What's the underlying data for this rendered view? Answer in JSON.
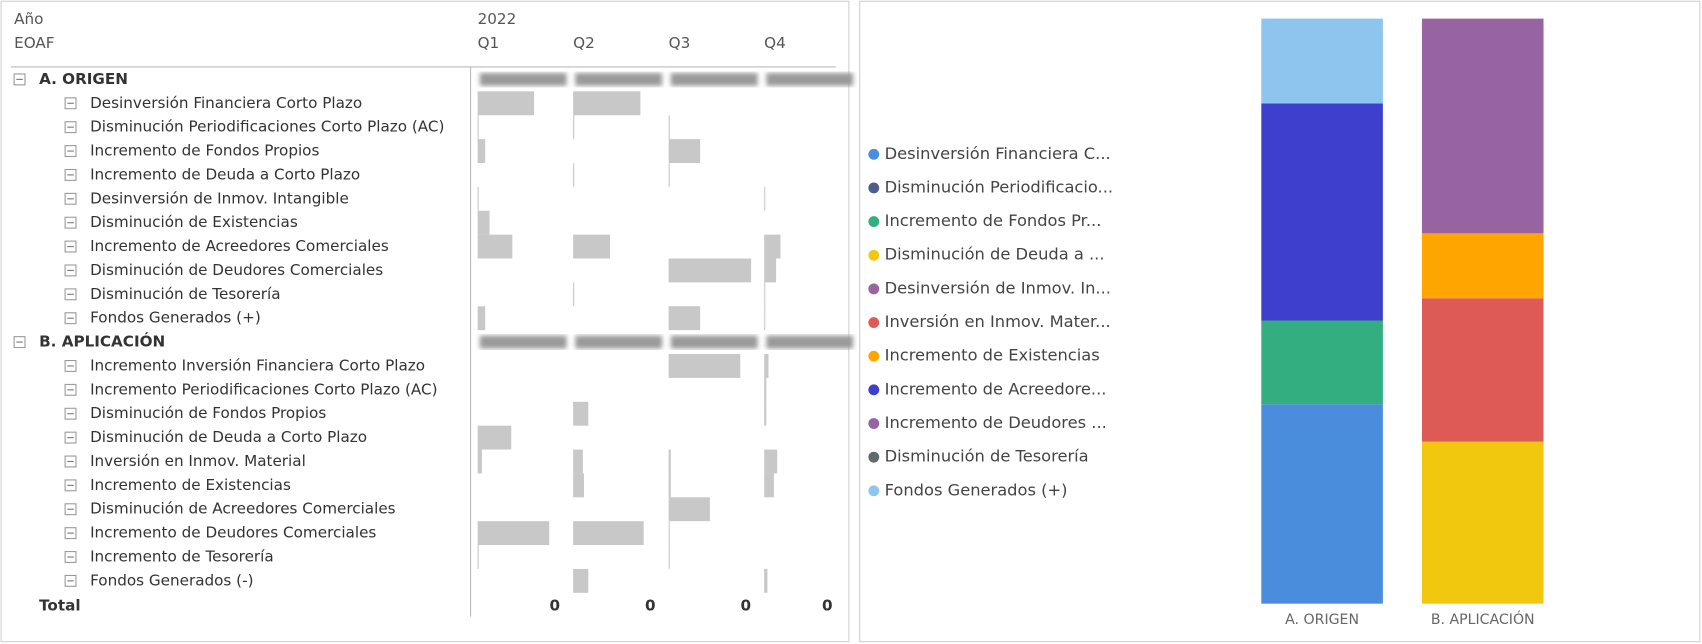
{
  "matrix": {
    "headers": {
      "row_levels": [
        "Año",
        "EOAF"
      ],
      "year": "2022",
      "columns": [
        "Q1",
        "Q2",
        "Q3",
        "Q4"
      ]
    },
    "groups": [
      {
        "label": "A. ORIGEN",
        "rows": [
          {
            "label": "Desinversión Financiera Corto Plazo",
            "bars": [
              52,
              62,
              null,
              null
            ]
          },
          {
            "label": "Disminución Periodificaciones Corto Plazo (AC)",
            "bars": [
              1,
              1,
              1,
              null
            ]
          },
          {
            "label": "Incremento de Fondos Propios",
            "bars": [
              7,
              null,
              29,
              null
            ]
          },
          {
            "label": "Incremento de Deuda a Corto Plazo",
            "bars": [
              null,
              1,
              1,
              null
            ]
          },
          {
            "label": "Desinversión de Inmov. Intangible",
            "bars": [
              1,
              null,
              null,
              1
            ]
          },
          {
            "label": "Disminución de Existencias",
            "bars": [
              11,
              null,
              null,
              null
            ]
          },
          {
            "label": "Incremento de Acreedores Comerciales",
            "bars": [
              32,
              34,
              null,
              15
            ]
          },
          {
            "label": "Disminución de Deudores Comerciales",
            "bars": [
              null,
              null,
              76,
              11
            ]
          },
          {
            "label": "Disminución de Tesorería",
            "bars": [
              null,
              1,
              null,
              1
            ]
          },
          {
            "label": "Fondos Generados (+)",
            "bars": [
              7,
              null,
              29,
              1
            ]
          }
        ]
      },
      {
        "label": "B. APLICACIÓN",
        "rows": [
          {
            "label": "Incremento Inversión Financiera Corto Plazo",
            "bars": [
              null,
              null,
              66,
              4
            ]
          },
          {
            "label": "Incremento Periodificaciones Corto Plazo (AC)",
            "bars": [
              null,
              null,
              null,
              2
            ]
          },
          {
            "label": "Disminución de Fondos Propios",
            "bars": [
              null,
              14,
              null,
              2
            ]
          },
          {
            "label": "Disminución de Deuda a Corto Plazo",
            "bars": [
              31,
              null,
              null,
              null
            ]
          },
          {
            "label": "Inversión en Inmov. Material",
            "bars": [
              4,
              9,
              2,
              12
            ]
          },
          {
            "label": "Incremento de Existencias",
            "bars": [
              null,
              10,
              2,
              9
            ]
          },
          {
            "label": "Disminución de Acreedores Comerciales",
            "bars": [
              null,
              null,
              38,
              null
            ]
          },
          {
            "label": "Incremento de Deudores Comerciales",
            "bars": [
              66,
              65,
              1,
              null
            ]
          },
          {
            "label": "Incremento de Tesorería",
            "bars": [
              1,
              null,
              1,
              null
            ]
          },
          {
            "label": "Fondos Generados (-)",
            "bars": [
              null,
              14,
              null,
              3
            ]
          }
        ]
      }
    ],
    "total": {
      "label": "Total",
      "values": [
        0,
        0,
        0,
        0
      ]
    }
  },
  "chart_data": {
    "type": "bar",
    "stacked": true,
    "categories": [
      "A. ORIGEN",
      "B. APLICACIÓN"
    ],
    "ylim": [
      0,
      100
    ],
    "series": [
      {
        "name": "Desinversión Financiera C...",
        "color": "#4a8ddc",
        "values": [
          34.1,
          null
        ]
      },
      {
        "name": "Disminución Periodificacio...",
        "color": "#4c5d8a",
        "values": [
          null,
          null
        ]
      },
      {
        "name": "Incremento de Fondos Pr...",
        "color": "#33ae81",
        "values": [
          14.3,
          null
        ]
      },
      {
        "name": "Disminución de Deuda a ...",
        "color": "#f2c80f",
        "values": [
          null,
          27.7
        ]
      },
      {
        "name": "Desinversión de Inmov. In...",
        "color": "#9a64a0",
        "values": [
          null,
          null
        ]
      },
      {
        "name": "Inversión en Inmov. Mater...",
        "color": "#dd5a57",
        "values": [
          null,
          24.5
        ]
      },
      {
        "name": "Incremento de Existencias",
        "color": "#fea500",
        "values": [
          null,
          11.1
        ]
      },
      {
        "name": "Incremento de Acreedore...",
        "color": "#3f3fcd",
        "values": [
          37.1,
          null
        ]
      },
      {
        "name": "Incremento de Deudores ...",
        "color": "#9763a0",
        "values": [
          null,
          36.7
        ]
      },
      {
        "name": "Disminución de Tesorería",
        "color": "#5f6b6d",
        "values": [
          null,
          null
        ]
      },
      {
        "name": "Fondos Generados (+)",
        "color": "#8ec5ef",
        "values": [
          14.5,
          null
        ]
      }
    ]
  }
}
